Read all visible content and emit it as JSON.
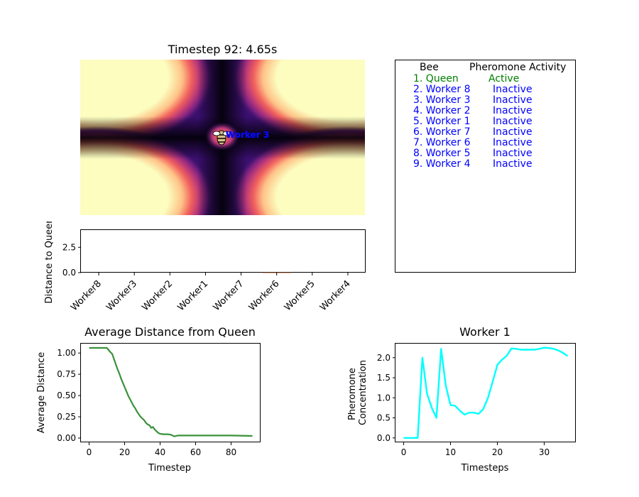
{
  "heatmap": {
    "title": "Timestep 92: 4.65s",
    "marker_label": "Worker 3"
  },
  "status_table": {
    "header_bee": "Bee",
    "header_activity": "Pheromone Activity",
    "rows": [
      {
        "bee": "1. Queen",
        "activity": "Active",
        "color": "#008000"
      },
      {
        "bee": "2. Worker 8",
        "activity": "Inactive",
        "color": "#0000ff"
      },
      {
        "bee": "3. Worker 3",
        "activity": "Inactive",
        "color": "#0000ff"
      },
      {
        "bee": "4. Worker 2",
        "activity": "Inactive",
        "color": "#0000ff"
      },
      {
        "bee": "5. Worker 1",
        "activity": "Inactive",
        "color": "#0000ff"
      },
      {
        "bee": "6. Worker 7",
        "activity": "Inactive",
        "color": "#0000ff"
      },
      {
        "bee": "7. Worker 6",
        "activity": "Inactive",
        "color": "#0000ff"
      },
      {
        "bee": "8. Worker 5",
        "activity": "Inactive",
        "color": "#0000ff"
      },
      {
        "bee": "9. Worker 4",
        "activity": "Inactive",
        "color": "#0000ff"
      }
    ]
  },
  "chart_data": [
    {
      "type": "heatmap",
      "title": "Timestep 92: 4.65s",
      "colormap": "magma",
      "annotations": [
        "Worker 3"
      ]
    },
    {
      "type": "bar",
      "title": "",
      "xlabel": "",
      "ylabel": "Distance to Queen",
      "categories": [
        "Worker8",
        "Worker3",
        "Worker2",
        "Worker1",
        "Worker7",
        "Worker6",
        "Worker5",
        "Worker4"
      ],
      "values": [
        0.0,
        0.0,
        0.0,
        0.0,
        0.0,
        0.02,
        0.0,
        0.0
      ],
      "ylim": [
        0,
        4.2
      ],
      "yticks": [
        0.0,
        2.5
      ],
      "ytick_labels": [
        "0.0",
        "2.5"
      ]
    },
    {
      "type": "line",
      "title": "Average Distance from Queen",
      "xlabel": "Timestep",
      "ylabel": "Average Distance",
      "color": "#3a923a",
      "xlim": [
        -4.6,
        96.6
      ],
      "ylim": [
        -0.05,
        1.11
      ],
      "xticks": [
        0,
        20,
        40,
        60,
        80
      ],
      "yticks": [
        0.0,
        0.25,
        0.5,
        0.75,
        1.0
      ],
      "ytick_labels": [
        "0.00",
        "0.25",
        "0.50",
        "0.75",
        "1.00"
      ],
      "x": [
        0,
        2,
        4,
        6,
        8,
        10,
        12,
        13,
        14,
        15,
        16,
        17,
        18,
        19,
        20,
        21,
        22,
        23,
        24,
        25,
        26,
        27,
        28,
        29,
        30,
        31,
        32,
        33,
        34,
        35,
        36,
        37,
        38,
        39,
        40,
        42,
        44,
        46,
        47,
        48,
        50,
        55,
        60,
        70,
        80,
        92
      ],
      "y": [
        1.06,
        1.06,
        1.06,
        1.06,
        1.06,
        1.06,
        1.01,
        0.99,
        0.93,
        0.87,
        0.81,
        0.76,
        0.7,
        0.65,
        0.6,
        0.55,
        0.5,
        0.46,
        0.42,
        0.38,
        0.35,
        0.31,
        0.28,
        0.25,
        0.23,
        0.21,
        0.18,
        0.16,
        0.15,
        0.12,
        0.13,
        0.1,
        0.08,
        0.06,
        0.05,
        0.045,
        0.045,
        0.04,
        0.03,
        0.02,
        0.03,
        0.03,
        0.03,
        0.03,
        0.03,
        0.025
      ]
    },
    {
      "type": "line",
      "title": "Worker 1",
      "xlabel": "Timesteps",
      "ylabel": "Pheromone Concentration",
      "color": "#00ffff",
      "xlim": [
        -1.75,
        36.75
      ],
      "ylim": [
        -0.11,
        2.35
      ],
      "xticks": [
        0,
        10,
        20,
        30
      ],
      "yticks": [
        0.0,
        0.5,
        1.0,
        1.5,
        2.0
      ],
      "ytick_labels": [
        "0.0",
        "0.5",
        "1.0",
        "1.5",
        "2.0"
      ],
      "x": [
        0,
        1,
        2,
        3,
        4,
        5,
        6,
        7,
        8,
        9,
        10,
        11,
        12,
        13,
        14,
        15,
        16,
        17,
        18,
        19,
        20,
        21,
        22,
        23,
        24,
        25,
        26,
        27,
        28,
        29,
        30,
        31,
        32,
        33,
        34,
        35
      ],
      "y": [
        0.0,
        0.0,
        0.0,
        0.0,
        2.0,
        1.1,
        0.75,
        0.5,
        2.22,
        1.3,
        0.82,
        0.8,
        0.68,
        0.58,
        0.63,
        0.63,
        0.6,
        0.72,
        1.0,
        1.4,
        1.82,
        1.95,
        2.05,
        2.23,
        2.22,
        2.2,
        2.2,
        2.2,
        2.2,
        2.22,
        2.25,
        2.24,
        2.22,
        2.18,
        2.12,
        2.04
      ]
    }
  ]
}
